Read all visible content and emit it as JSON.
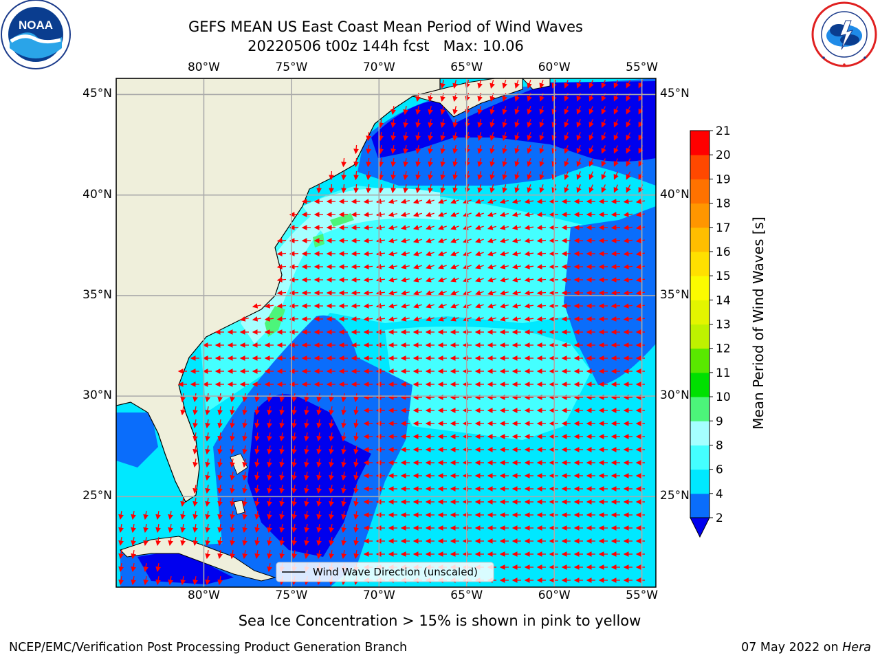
{
  "header": {
    "title_line1": "GEFS MEAN US East Coast Mean Period of Wind Waves",
    "title_line2": "20220506 t00z 144h fcst   Max: 10.06"
  },
  "logos": {
    "noaa": {
      "text": "NOAA",
      "ring_text": "NATIONAL OCEANIC AND ATMOSPHERIC ADMINISTRATION · U.S. DEPARTMENT OF COMMERCE"
    },
    "nws": {
      "ring_text": "NATIONAL WEATHER SERVICE"
    }
  },
  "map": {
    "lon_ticks": [
      "80°W",
      "75°W",
      "70°W",
      "65°W",
      "60°W",
      "55°W"
    ],
    "lat_ticks": [
      "45°N",
      "40°N",
      "35°N",
      "30°N",
      "25°N"
    ],
    "lon_values": [
      -80,
      -75,
      -70,
      -65,
      -60,
      -55
    ],
    "lat_values": [
      45,
      40,
      35,
      30,
      25
    ],
    "extent": {
      "lon_min": -85,
      "lon_max": -54.2,
      "lat_min": 20.5,
      "lat_max": 45.8
    },
    "legend_label": "Wind Wave Direction (unscaled)",
    "arrow_color": "#ff0000",
    "land_color": "#efefdb"
  },
  "colorbar": {
    "label": "Mean Period of Wind Waves [s]",
    "ticks": [
      "2",
      "4",
      "6",
      "8",
      "9",
      "10",
      "11",
      "12",
      "13",
      "14",
      "15",
      "16",
      "17",
      "18",
      "19",
      "20",
      "21"
    ],
    "colors": [
      "#0a6dfb",
      "#00e8ff",
      "#44ffff",
      "#a5ffff",
      "#4cf57a",
      "#00e000",
      "#59e800",
      "#bef200",
      "#e3f500",
      "#fbfb00",
      "#ffe000",
      "#ffbe00",
      "#ff9600",
      "#ff7200",
      "#ff4800",
      "#ff0000"
    ],
    "extend_color": "#0000ee"
  },
  "notes": {
    "sea_ice": "Sea Ice Concentration > 15% is shown in pink to yellow"
  },
  "footer": {
    "left": "NCEP/EMC/Verification Post Processing Product Generation Branch",
    "right_date": "07 May 2022 on ",
    "right_host": "Hera"
  }
}
